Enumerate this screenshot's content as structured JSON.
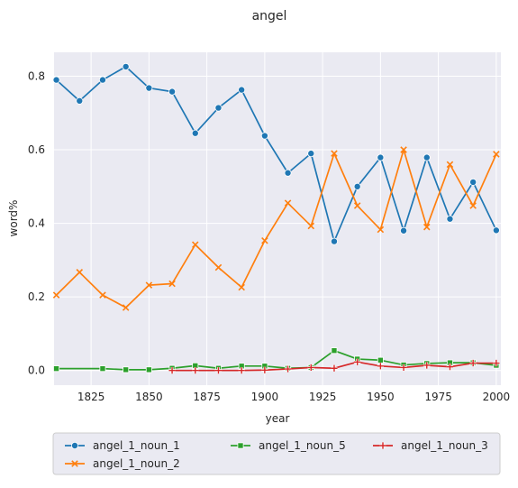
{
  "chart_data": {
    "type": "line",
    "title": "angel",
    "xlabel": "year",
    "ylabel": "word%",
    "xlim": [
      1809,
      2002
    ],
    "ylim": [
      -0.04,
      0.865
    ],
    "xticks": [
      1825,
      1850,
      1875,
      1900,
      1925,
      1950,
      1975,
      2000
    ],
    "yticks": [
      0.0,
      0.2,
      0.4,
      0.6,
      0.8
    ],
    "grid": true,
    "legend_position": "bottom",
    "x": [
      1810,
      1820,
      1830,
      1840,
      1850,
      1860,
      1870,
      1880,
      1890,
      1900,
      1910,
      1920,
      1930,
      1940,
      1950,
      1960,
      1970,
      1980,
      1990,
      2000
    ],
    "series": [
      {
        "name": "angel_1_noun_1",
        "color": "#1f77b4",
        "marker": "circle",
        "values": [
          0.79,
          0.733,
          0.79,
          0.826,
          0.768,
          0.758,
          0.645,
          0.714,
          0.763,
          0.638,
          0.537,
          0.59,
          0.351,
          0.5,
          0.579,
          0.38,
          0.579,
          0.412,
          0.512,
          0.381
        ]
      },
      {
        "name": "angel_1_noun_2",
        "color": "#ff7f0e",
        "marker": "x",
        "values": [
          0.205,
          0.267,
          0.205,
          0.171,
          0.232,
          0.236,
          0.342,
          0.28,
          0.226,
          0.353,
          0.455,
          0.393,
          0.59,
          0.448,
          0.383,
          0.6,
          0.39,
          0.56,
          0.448,
          0.588
        ]
      },
      {
        "name": "angel_1_noun_5",
        "color": "#2ca02c",
        "marker": "square",
        "values": [
          0.005,
          null,
          0.005,
          0.002,
          0.002,
          0.006,
          0.013,
          0.006,
          0.012,
          0.012,
          0.006,
          0.008,
          0.054,
          0.031,
          0.028,
          0.015,
          0.019,
          0.021,
          0.021,
          0.014
        ]
      },
      {
        "name": "angel_1_noun_3",
        "color": "#d62728",
        "marker": "plus",
        "values": [
          null,
          null,
          null,
          null,
          null,
          0.0,
          0.0,
          0.0,
          0.0,
          0.001,
          0.004,
          0.008,
          0.006,
          0.023,
          0.012,
          0.008,
          0.014,
          0.01,
          0.02,
          0.02
        ]
      }
    ]
  }
}
